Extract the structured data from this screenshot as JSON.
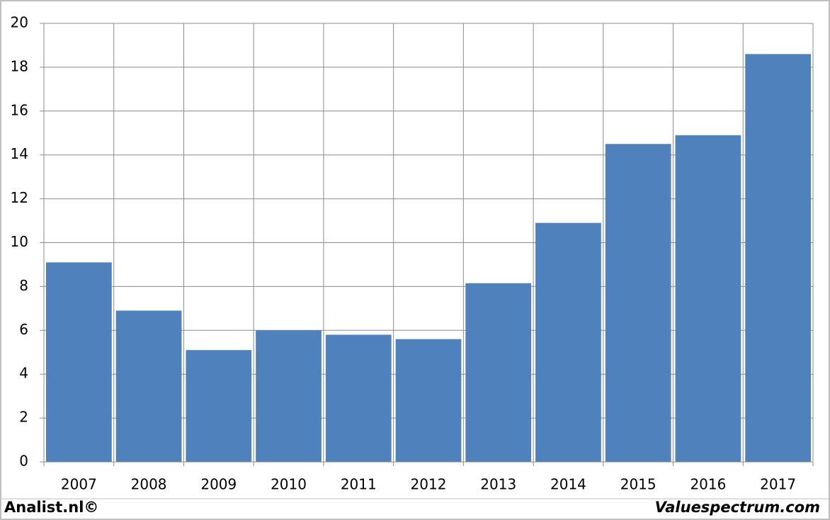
{
  "chart_data": {
    "type": "bar",
    "categories": [
      "2007",
      "2008",
      "2009",
      "2010",
      "2011",
      "2012",
      "2013",
      "2014",
      "2015",
      "2016",
      "2017"
    ],
    "values": [
      9.1,
      6.9,
      5.1,
      6.0,
      5.8,
      5.6,
      8.15,
      10.9,
      14.5,
      14.9,
      18.6
    ],
    "color": "#4f81bd",
    "ylim": [
      0,
      20
    ],
    "yticks": [
      0,
      2,
      4,
      6,
      8,
      10,
      12,
      14,
      16,
      18,
      20
    ],
    "grid": true,
    "footer_left": "Analist.nl©",
    "footer_right": "Valuespectrum.com"
  }
}
